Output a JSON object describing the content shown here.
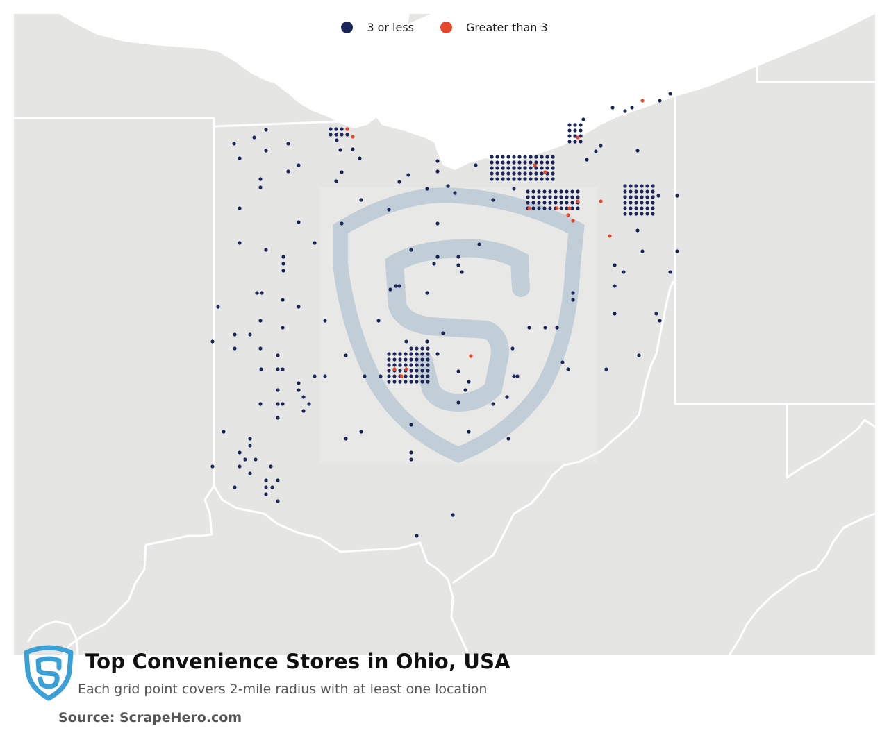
{
  "legend": {
    "items": [
      {
        "label": "3 or less",
        "color": "#1b2456"
      },
      {
        "label": "Greater than 3",
        "color": "#e4472a"
      }
    ]
  },
  "footer": {
    "title": "Top Convenience Stores in Ohio, USA",
    "subtitle": "Each grid point covers 2-mile radius with at least one location",
    "source": "Source: ScrapeHero.com"
  },
  "colors": {
    "land": "#e5e5e4",
    "lake": "#ffffff",
    "borders": "#ffffff",
    "watermark": "#9fb8cf",
    "logo": "#3aa0d5"
  },
  "icons": {
    "logo": "scrapehero-shield-icon",
    "watermark": "scrapehero-shield-watermark"
  }
}
